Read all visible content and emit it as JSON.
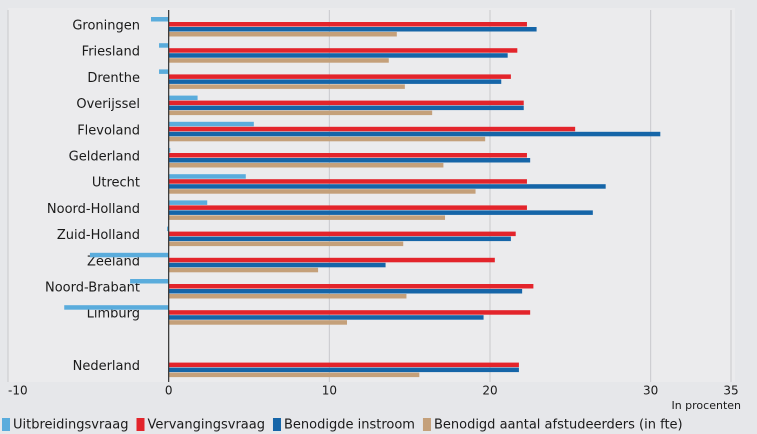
{
  "chart_data": {
    "type": "bar",
    "orientation": "horizontal",
    "categories": [
      "Groningen",
      "Friesland",
      "Drenthe",
      "Overijssel",
      "Flevoland",
      "Gelderland",
      "Utrecht",
      "Noord-Holland",
      "Zuid-Holland",
      "Zeeland",
      "Noord-Brabant",
      "Limburg",
      null,
      "Nederland"
    ],
    "series": [
      {
        "name": "Uitbreidingsvraag",
        "color": "#5aacdc",
        "values": [
          -1.1,
          -0.6,
          -0.6,
          1.8,
          5.3,
          0.1,
          4.8,
          2.4,
          -0.1,
          -4.9,
          -2.4,
          -6.5,
          null,
          0
        ]
      },
      {
        "name": "Vervangingsvraag",
        "color": "#e3242b",
        "values": [
          22.3,
          21.7,
          21.3,
          22.1,
          25.3,
          22.3,
          22.3,
          22.3,
          21.6,
          20.3,
          22.7,
          22.5,
          null,
          21.8
        ]
      },
      {
        "name": "Benodigde instroom",
        "color": "#1565a8",
        "values": [
          22.9,
          21.1,
          20.7,
          22.1,
          30.6,
          22.5,
          27.2,
          26.4,
          21.3,
          13.5,
          22.0,
          19.6,
          null,
          21.8
        ]
      },
      {
        "name": "Benodigd aantal afstudeerders (in fte)",
        "color": "#c4a07a",
        "values": [
          14.2,
          13.7,
          14.7,
          16.4,
          19.7,
          17.1,
          19.1,
          17.2,
          14.6,
          9.3,
          14.8,
          11.1,
          null,
          15.6
        ]
      }
    ],
    "xlim": [
      -10,
      35
    ],
    "xticks": [
      -10,
      0,
      10,
      20,
      30,
      35
    ],
    "x_label": "In procenten",
    "grid": true
  }
}
